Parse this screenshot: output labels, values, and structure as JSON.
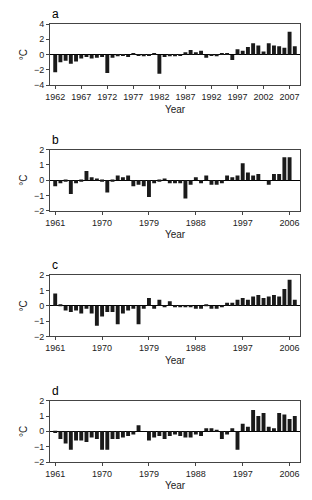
{
  "chart_data": [
    {
      "type": "bar",
      "title": "a",
      "x": [
        1962,
        1963,
        1964,
        1965,
        1966,
        1967,
        1968,
        1969,
        1970,
        1971,
        1972,
        1973,
        1974,
        1975,
        1976,
        1977,
        1978,
        1979,
        1980,
        1981,
        1982,
        1983,
        1984,
        1985,
        1986,
        1987,
        1988,
        1989,
        1990,
        1991,
        1992,
        1993,
        1994,
        1995,
        1996,
        1997,
        1998,
        1999,
        2000,
        2001,
        2002,
        2003,
        2004,
        2005,
        2006,
        2007,
        2008
      ],
      "values": [
        -2.3,
        -1.0,
        -0.8,
        -1.2,
        -0.9,
        -0.5,
        -0.3,
        -0.5,
        -0.4,
        -0.3,
        -2.4,
        -0.4,
        -0.2,
        -0.1,
        -0.3,
        0.2,
        -0.1,
        -0.2,
        -0.1,
        0.1,
        -2.5,
        -0.3,
        -0.2,
        -0.2,
        -0.1,
        0.3,
        0.6,
        0.3,
        0.5,
        -0.4,
        -0.1,
        -0.2,
        0.2,
        0.2,
        -0.7,
        0.7,
        0.5,
        1.0,
        1.5,
        1.2,
        0.4,
        1.5,
        1.2,
        1.1,
        0.9,
        3.0,
        1.1
      ],
      "color": "#1a1a1a",
      "xlim": [
        1961,
        2009
      ],
      "xticks": [
        1962,
        1967,
        1972,
        1977,
        1982,
        1987,
        1992,
        1997,
        2002,
        2007
      ],
      "ylim": [
        -4,
        4
      ],
      "yticks": [
        -4,
        -2,
        0,
        2,
        4
      ],
      "x_label": "Year",
      "y_label": "°C",
      "grid": false
    },
    {
      "type": "bar",
      "title": "b",
      "x": [
        1961,
        1962,
        1963,
        1964,
        1965,
        1966,
        1967,
        1968,
        1969,
        1970,
        1971,
        1972,
        1973,
        1974,
        1975,
        1976,
        1977,
        1978,
        1979,
        1980,
        1981,
        1982,
        1983,
        1984,
        1985,
        1986,
        1987,
        1988,
        1989,
        1990,
        1991,
        1992,
        1993,
        1994,
        1995,
        1996,
        1997,
        1998,
        1999,
        2000,
        2001,
        2002,
        2003,
        2004,
        2005,
        2006,
        2007
      ],
      "values": [
        -0.4,
        -0.2,
        -0.1,
        -0.9,
        -0.2,
        -0.1,
        0.6,
        0.2,
        0.1,
        -0.1,
        -0.8,
        -0.1,
        0.3,
        0.2,
        0.3,
        -0.4,
        -0.3,
        -0.4,
        -1.1,
        -0.2,
        -0.1,
        0.1,
        -0.2,
        -0.2,
        -0.2,
        -1.2,
        -0.3,
        0.2,
        -0.2,
        0.3,
        -0.3,
        -0.3,
        -0.2,
        0.3,
        0.2,
        0.3,
        1.1,
        0.5,
        0.3,
        0.4,
        0.0,
        -0.3,
        0.4,
        0.4,
        1.5,
        1.5,
        0.0
      ],
      "color": "#1a1a1a",
      "xlim": [
        1960,
        2008
      ],
      "xticks": [
        1961,
        1970,
        1979,
        1988,
        1997,
        2006
      ],
      "ylim": [
        -2,
        2
      ],
      "yticks": [
        -2,
        -1,
        0,
        1,
        2
      ],
      "x_label": "Year",
      "y_label": "°C",
      "grid": false
    },
    {
      "type": "bar",
      "title": "c",
      "x": [
        1961,
        1962,
        1963,
        1964,
        1965,
        1966,
        1967,
        1968,
        1969,
        1970,
        1971,
        1972,
        1973,
        1974,
        1975,
        1976,
        1977,
        1978,
        1979,
        1980,
        1981,
        1982,
        1983,
        1984,
        1985,
        1986,
        1987,
        1988,
        1989,
        1990,
        1991,
        1992,
        1993,
        1994,
        1995,
        1996,
        1997,
        1998,
        1999,
        2000,
        2001,
        2002,
        2003,
        2004,
        2005,
        2006,
        2007
      ],
      "values": [
        0.8,
        0.1,
        -0.3,
        -0.4,
        -0.3,
        -0.5,
        -0.2,
        -0.5,
        -1.3,
        -0.7,
        -0.4,
        -0.4,
        -1.2,
        -0.5,
        -0.3,
        -0.2,
        -1.2,
        -0.2,
        0.5,
        -0.2,
        0.4,
        -0.1,
        0.3,
        -0.1,
        -0.1,
        -0.1,
        -0.1,
        -0.2,
        -0.2,
        0.1,
        -0.2,
        -0.2,
        -0.1,
        0.2,
        0.2,
        0.4,
        0.5,
        0.4,
        0.6,
        0.7,
        0.5,
        0.6,
        0.7,
        0.6,
        1.1,
        1.7,
        0.4
      ],
      "color": "#1a1a1a",
      "xlim": [
        1960,
        2008
      ],
      "xticks": [
        1961,
        1970,
        1979,
        1988,
        1997,
        2006
      ],
      "ylim": [
        -2,
        2
      ],
      "yticks": [
        -2,
        -1,
        0,
        1,
        2
      ],
      "x_label": "Year",
      "y_label": "°C",
      "grid": false
    },
    {
      "type": "bar",
      "title": "d",
      "x": [
        1961,
        1962,
        1963,
        1964,
        1965,
        1966,
        1967,
        1968,
        1969,
        1970,
        1971,
        1972,
        1973,
        1974,
        1975,
        1976,
        1977,
        1978,
        1979,
        1980,
        1981,
        1982,
        1983,
        1984,
        1985,
        1986,
        1987,
        1988,
        1989,
        1990,
        1991,
        1992,
        1993,
        1994,
        1995,
        1996,
        1997,
        1998,
        1999,
        2000,
        2001,
        2002,
        2003,
        2004,
        2005,
        2006,
        2007
      ],
      "values": [
        -0.1,
        -0.5,
        -0.8,
        -1.2,
        -0.6,
        -0.6,
        -0.7,
        -0.4,
        -0.5,
        -1.2,
        -1.2,
        -0.5,
        -0.5,
        -0.4,
        -0.3,
        -0.2,
        0.4,
        0.0,
        -0.6,
        -0.4,
        -0.3,
        -0.5,
        -0.3,
        -0.2,
        -0.3,
        -0.4,
        -0.4,
        -0.2,
        -0.3,
        0.2,
        0.2,
        0.1,
        -0.5,
        -0.2,
        0.2,
        -1.2,
        0.5,
        0.3,
        1.4,
        1.0,
        1.2,
        0.3,
        0.2,
        1.2,
        1.1,
        0.8,
        1.0
      ],
      "color": "#1a1a1a",
      "xlim": [
        1960,
        2008
      ],
      "xticks": [
        1961,
        1970,
        1979,
        1988,
        1997,
        2006
      ],
      "ylim": [
        -2,
        2
      ],
      "yticks": [
        -2,
        -1,
        0,
        1,
        2
      ],
      "x_label": "Year",
      "y_label": "°C",
      "grid": false
    }
  ]
}
